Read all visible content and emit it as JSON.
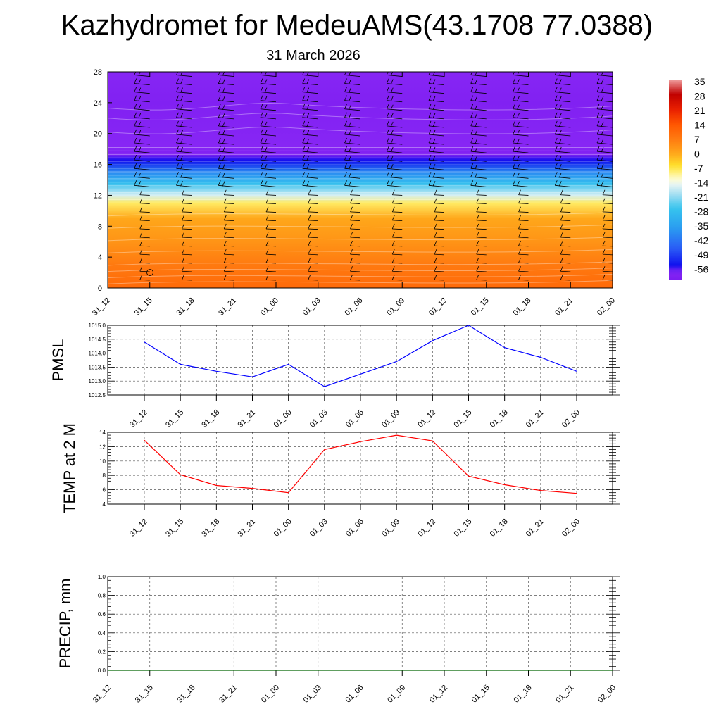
{
  "title": "Kazhydromet for MedeuAMS(43.1708 77.0388)",
  "date_label": "31 March 2026",
  "time_labels": [
    "31_12",
    "31_15",
    "31_18",
    "31_21",
    "01_00",
    "01_03",
    "01_06",
    "01_09",
    "01_12",
    "01_15",
    "01_18",
    "01_21",
    "02_00"
  ],
  "colorbar": {
    "labels": [
      "35",
      "28",
      "21",
      "14",
      "7",
      "0",
      "-7",
      "-14",
      "-21",
      "-28",
      "-35",
      "-42",
      "-49",
      "-56"
    ]
  },
  "chart_data": [
    {
      "type": "heatmap",
      "name": "vertical temperature cross-section with wind barbs",
      "title": "",
      "xlabel": "",
      "ylabel": "",
      "x_ticks": [
        "31_12",
        "31_15",
        "31_18",
        "31_21",
        "01_00",
        "01_03",
        "01_06",
        "01_09",
        "01_12",
        "01_15",
        "01_18",
        "01_21",
        "02_00"
      ],
      "y_ticks": [
        0,
        4,
        8,
        12,
        16,
        20,
        24,
        28
      ],
      "ylim": [
        0,
        28
      ],
      "temperature_profile": [
        {
          "level": 0,
          "temp": 10
        },
        {
          "level": 3,
          "temp": 7
        },
        {
          "level": 6,
          "temp": 3
        },
        {
          "level": 9,
          "temp": 0
        },
        {
          "level": 11,
          "temp": -8
        },
        {
          "level": 12,
          "temp": -16
        },
        {
          "level": 13.5,
          "temp": -27
        },
        {
          "level": 15,
          "temp": -38
        },
        {
          "level": 16.5,
          "temp": -53
        },
        {
          "level": 17.3,
          "temp": -58
        },
        {
          "level": 18.5,
          "temp": -56
        },
        {
          "level": 24,
          "temp": -58
        },
        {
          "level": 28,
          "temp": -56
        }
      ],
      "colorscale": {
        "min": -60,
        "max": 35
      }
    },
    {
      "type": "line",
      "ylabel": "PMSL",
      "color": "#0000ff",
      "categories": [
        "31_12",
        "31_15",
        "31_18",
        "31_21",
        "01_00",
        "01_03",
        "01_06",
        "01_09",
        "01_12",
        "01_15",
        "01_18",
        "01_21",
        "02_00"
      ],
      "values": [
        1014.4,
        1013.6,
        1013.35,
        1013.15,
        1013.6,
        1012.8,
        1013.25,
        1013.7,
        1014.45,
        1015.0,
        1014.2,
        1013.85,
        1013.35
      ],
      "ylim": [
        1012.5,
        1015.0
      ],
      "y_ticks": [
        "1012.5",
        "1013.0",
        "1013.5",
        "1014.0",
        "1014.5",
        "1015.0"
      ]
    },
    {
      "type": "line",
      "ylabel": "TEMP at 2 M",
      "color": "#ff0000",
      "categories": [
        "31_12",
        "31_15",
        "31_18",
        "31_21",
        "01_00",
        "01_03",
        "01_06",
        "01_09",
        "01_12",
        "01_15",
        "01_18",
        "01_21",
        "02_00"
      ],
      "values": [
        12.9,
        8.1,
        6.6,
        6.2,
        5.6,
        11.6,
        12.7,
        13.6,
        12.8,
        7.9,
        6.7,
        5.9,
        5.5
      ],
      "ylim": [
        4,
        14
      ],
      "y_ticks": [
        "4",
        "6",
        "8",
        "10",
        "12",
        "14"
      ]
    },
    {
      "type": "line",
      "ylabel": "PRECIP, mm",
      "color": "#006400",
      "categories": [
        "31_12",
        "31_15",
        "31_18",
        "31_21",
        "01_00",
        "01_03",
        "01_06",
        "01_09",
        "01_12",
        "01_15",
        "01_18",
        "01_21",
        "02_00"
      ],
      "values": [
        0,
        0,
        0,
        0,
        0,
        0,
        0,
        0,
        0,
        0,
        0,
        0,
        0
      ],
      "ylim": [
        0,
        1.0
      ],
      "y_ticks": [
        "0.0",
        "0.2",
        "0.4",
        "0.6",
        "0.8",
        "1.0"
      ]
    }
  ]
}
